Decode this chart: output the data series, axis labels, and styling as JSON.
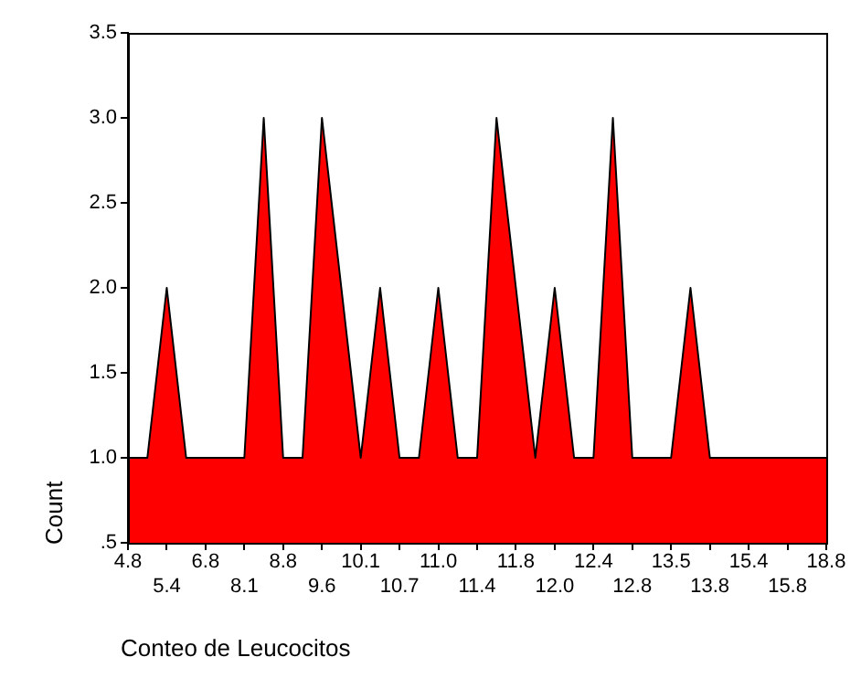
{
  "chart_data": {
    "type": "area",
    "xlabel": "Conteo de Leucocitos",
    "ylabel": "Count",
    "categories": [
      "4.8",
      null,
      "5.4",
      null,
      "6.8",
      null,
      "8.1",
      null,
      "8.8",
      null,
      "9.6",
      null,
      "10.1",
      null,
      "10.7",
      null,
      "11.0",
      null,
      "11.4",
      null,
      "11.8",
      null,
      "12.0",
      null,
      "12.4",
      null,
      "12.8",
      null,
      "13.5",
      null,
      "13.8",
      null,
      "15.4",
      null,
      "15.8",
      null,
      "18.8"
    ],
    "values": [
      1,
      1,
      2,
      1,
      1,
      1,
      1,
      3,
      1,
      1,
      3,
      2,
      1,
      2,
      1,
      1,
      2,
      1,
      1,
      3,
      2,
      1,
      2,
      1,
      1,
      3,
      1,
      1,
      1,
      2,
      1,
      1,
      1,
      1,
      1,
      1,
      1
    ],
    "color": "#ff0000",
    "ylim": [
      0.5,
      3.5
    ],
    "yticks": [
      {
        "value": 0.5,
        "label": ".5"
      },
      {
        "value": 1,
        "label": "1.0"
      },
      {
        "value": 1.5,
        "label": "1.5"
      },
      {
        "value": 2,
        "label": "2.0"
      },
      {
        "value": 2.5,
        "label": "2.5"
      },
      {
        "value": 3,
        "label": "3.0"
      },
      {
        "value": 3.5,
        "label": "3.5"
      }
    ]
  }
}
